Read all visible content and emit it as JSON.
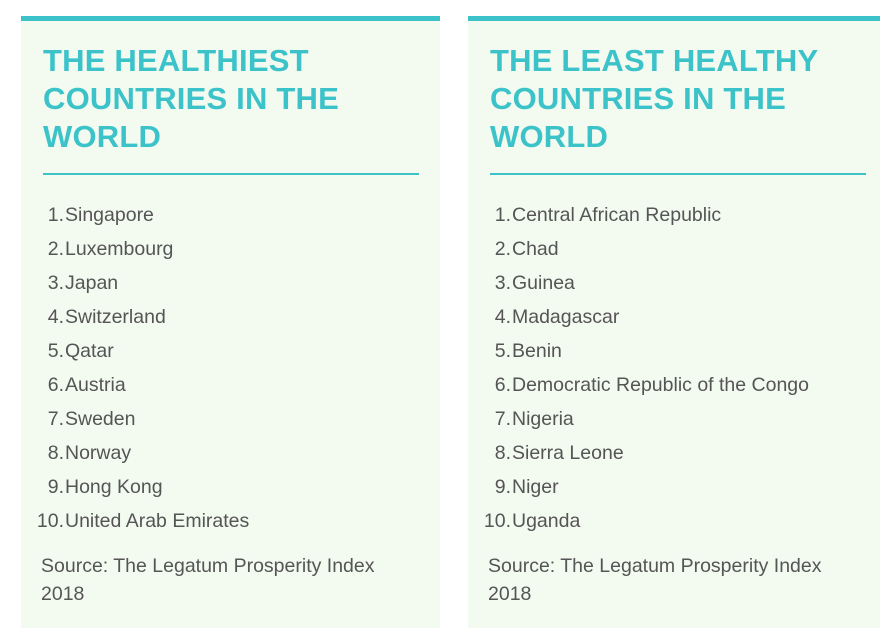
{
  "left_panel": {
    "title": "THE HEALTHIEST COUNTRIES IN THE WORLD",
    "items": [
      {
        "num": "1.",
        "name": "Singapore"
      },
      {
        "num": "2.",
        "name": "Luxembourg"
      },
      {
        "num": "3.",
        "name": "Japan"
      },
      {
        "num": "4.",
        "name": "Switzerland"
      },
      {
        "num": "5.",
        "name": "Qatar"
      },
      {
        "num": "6.",
        "name": "Austria"
      },
      {
        "num": "7.",
        "name": "Sweden"
      },
      {
        "num": "8.",
        "name": "Norway"
      },
      {
        "num": "9.",
        "name": "Hong Kong"
      },
      {
        "num": "10.",
        "name": "United Arab Emirates"
      }
    ],
    "source": "Source: The Legatum Prosperity Index 2018"
  },
  "right_panel": {
    "title": "THE LEAST HEALTHY COUNTRIES IN THE WORLD",
    "items": [
      {
        "num": "1.",
        "name": "Central African Republic"
      },
      {
        "num": "2.",
        "name": "Chad"
      },
      {
        "num": "3.",
        "name": "Guinea"
      },
      {
        "num": "4.",
        "name": "Madagascar"
      },
      {
        "num": "5.",
        "name": "Benin"
      },
      {
        "num": "6.",
        "name": "Democratic Republic of the Congo"
      },
      {
        "num": "7.",
        "name": "Nigeria"
      },
      {
        "num": "8.",
        "name": "Sierra Leone"
      },
      {
        "num": "9.",
        "name": "Niger"
      },
      {
        "num": "10.",
        "name": "Uganda"
      }
    ],
    "source": "Source: The Legatum Prosperity Index 2018"
  },
  "colors": {
    "accent": "#3cc3c9",
    "panel_bg": "#f3faf0",
    "text": "#555555"
  }
}
